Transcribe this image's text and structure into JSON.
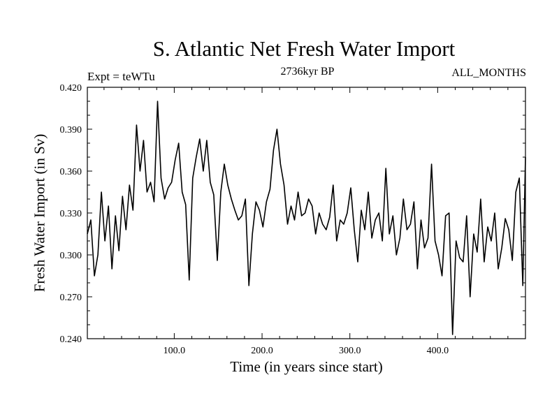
{
  "chart_data": {
    "type": "line",
    "title": "S. Atlantic Net Fresh Water Import",
    "subtitle": "2736kyr BP",
    "left_label": "Expt = teWTu",
    "right_label": "ALL_MONTHS",
    "xlabel": "Time (in years since start)",
    "ylabel": "Fresh Water Import (in Sv)",
    "xlim": [
      1,
      500
    ],
    "ylim": [
      0.24,
      0.42
    ],
    "x_ticks": [
      100,
      200,
      300,
      400
    ],
    "x_tick_labels": [
      "100.0",
      "200.0",
      "300.0",
      "400.0"
    ],
    "y_ticks": [
      0.24,
      0.27,
      0.3,
      0.33,
      0.36,
      0.39,
      0.42
    ],
    "y_tick_labels": [
      "0.240",
      "0.270",
      "0.300",
      "0.330",
      "0.360",
      "0.390",
      "0.420"
    ],
    "series": [
      {
        "name": "fresh water import",
        "x": [
          1,
          5,
          9,
          13,
          17,
          21,
          25,
          29,
          33,
          37,
          41,
          45,
          49,
          53,
          57,
          61,
          65,
          69,
          73,
          77,
          81,
          85,
          89,
          93,
          97,
          101,
          105,
          109,
          113,
          117,
          121,
          125,
          129,
          133,
          137,
          141,
          145,
          149,
          153,
          157,
          161,
          165,
          169,
          173,
          177,
          181,
          185,
          189,
          193,
          197,
          201,
          205,
          209,
          213,
          217,
          221,
          225,
          229,
          233,
          237,
          241,
          245,
          249,
          253,
          257,
          261,
          265,
          269,
          273,
          277,
          281,
          285,
          289,
          293,
          297,
          301,
          305,
          309,
          313,
          317,
          321,
          325,
          329,
          333,
          337,
          341,
          345,
          349,
          353,
          357,
          361,
          365,
          369,
          373,
          377,
          381,
          385,
          389,
          393,
          397,
          401,
          405,
          409,
          413,
          417,
          421,
          425,
          429,
          433,
          437,
          441,
          445,
          449,
          453,
          457,
          461,
          465,
          469,
          473,
          477,
          481,
          485,
          489,
          493,
          497,
          500
        ],
        "values": [
          0.315,
          0.325,
          0.285,
          0.3,
          0.345,
          0.31,
          0.335,
          0.29,
          0.328,
          0.303,
          0.342,
          0.318,
          0.35,
          0.332,
          0.393,
          0.36,
          0.382,
          0.345,
          0.352,
          0.338,
          0.41,
          0.355,
          0.34,
          0.348,
          0.352,
          0.368,
          0.38,
          0.345,
          0.336,
          0.282,
          0.355,
          0.37,
          0.383,
          0.36,
          0.382,
          0.352,
          0.343,
          0.296,
          0.345,
          0.365,
          0.35,
          0.34,
          0.332,
          0.325,
          0.328,
          0.34,
          0.278,
          0.315,
          0.338,
          0.332,
          0.32,
          0.338,
          0.347,
          0.375,
          0.39,
          0.365,
          0.35,
          0.322,
          0.335,
          0.325,
          0.345,
          0.328,
          0.33,
          0.34,
          0.335,
          0.315,
          0.33,
          0.322,
          0.318,
          0.327,
          0.35,
          0.31,
          0.325,
          0.322,
          0.33,
          0.348,
          0.318,
          0.295,
          0.332,
          0.318,
          0.345,
          0.312,
          0.325,
          0.33,
          0.31,
          0.362,
          0.315,
          0.328,
          0.3,
          0.312,
          0.34,
          0.318,
          0.322,
          0.338,
          0.29,
          0.325,
          0.305,
          0.312,
          0.365,
          0.31,
          0.3,
          0.285,
          0.328,
          0.33,
          0.243,
          0.31,
          0.298,
          0.295,
          0.328,
          0.27,
          0.315,
          0.302,
          0.34,
          0.295,
          0.32,
          0.31,
          0.33,
          0.29,
          0.305,
          0.326,
          0.318,
          0.296,
          0.345,
          0.355,
          0.278,
          0.37
        ]
      }
    ]
  }
}
